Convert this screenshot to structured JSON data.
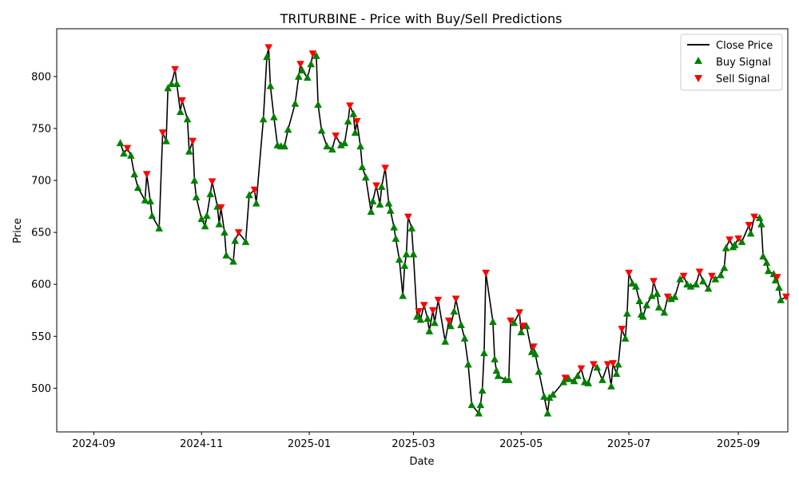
{
  "chart_data": {
    "type": "line",
    "title": "TRITURBINE - Price with Buy/Sell Predictions",
    "xlabel": "Date",
    "ylabel": "Price",
    "x_ticks": [
      "2024-09",
      "2024-11",
      "2025-01",
      "2025-03",
      "2025-05",
      "2025-07",
      "2025-09"
    ],
    "y_ticks": [
      500,
      550,
      600,
      650,
      700,
      750,
      800
    ],
    "xlim": [
      "2024-08-11",
      "2025-09-29"
    ],
    "ylim": [
      458,
      846
    ],
    "grid": false,
    "legend_position": "top-right",
    "colors": {
      "close": "#000000",
      "buy": "#008000",
      "sell": "#ff0000",
      "axes": "#000000"
    },
    "series": [
      {
        "name": "Close Price",
        "points": [
          [
            "2024-09-16",
            736
          ],
          [
            "2024-09-18",
            726
          ],
          [
            "2024-09-20",
            731
          ],
          [
            "2024-09-22",
            724
          ],
          [
            "2024-09-24",
            706
          ],
          [
            "2024-09-26",
            693
          ],
          [
            "2024-09-30",
            681
          ],
          [
            "2024-10-01",
            706
          ],
          [
            "2024-10-03",
            680
          ],
          [
            "2024-10-04",
            666
          ],
          [
            "2024-10-08",
            654
          ],
          [
            "2024-10-10",
            746
          ],
          [
            "2024-10-12",
            738
          ],
          [
            "2024-10-13",
            789
          ],
          [
            "2024-10-15",
            793
          ],
          [
            "2024-10-17",
            807
          ],
          [
            "2024-10-18",
            793
          ],
          [
            "2024-10-20",
            766
          ],
          [
            "2024-10-21",
            777
          ],
          [
            "2024-10-24",
            759
          ],
          [
            "2024-10-25",
            728
          ],
          [
            "2024-10-27",
            738
          ],
          [
            "2024-10-28",
            700
          ],
          [
            "2024-10-29",
            684
          ],
          [
            "2024-11-01",
            663
          ],
          [
            "2024-11-03",
            656
          ],
          [
            "2024-11-04",
            666
          ],
          [
            "2024-11-06",
            687
          ],
          [
            "2024-11-07",
            699
          ],
          [
            "2024-11-10",
            675
          ],
          [
            "2024-11-11",
            658
          ],
          [
            "2024-11-12",
            674
          ],
          [
            "2024-11-14",
            650
          ],
          [
            "2024-11-15",
            628
          ],
          [
            "2024-11-19",
            622
          ],
          [
            "2024-11-20",
            642
          ],
          [
            "2024-11-22",
            650
          ],
          [
            "2024-11-26",
            641
          ],
          [
            "2024-11-28",
            686
          ],
          [
            "2024-12-01",
            691
          ],
          [
            "2024-12-02",
            678
          ],
          [
            "2024-12-06",
            759
          ],
          [
            "2024-12-08",
            819
          ],
          [
            "2024-12-09",
            828
          ],
          [
            "2024-12-10",
            791
          ],
          [
            "2024-12-12",
            761
          ],
          [
            "2024-12-14",
            734
          ],
          [
            "2024-12-16",
            733
          ],
          [
            "2024-12-18",
            733
          ],
          [
            "2024-12-20",
            749
          ],
          [
            "2024-12-24",
            774
          ],
          [
            "2024-12-26",
            800
          ],
          [
            "2024-12-27",
            812
          ],
          [
            "2024-12-28",
            806
          ],
          [
            "2024-12-31",
            799
          ],
          [
            "2025-01-02",
            812
          ],
          [
            "2025-01-03",
            822
          ],
          [
            "2025-01-05",
            820
          ],
          [
            "2025-01-06",
            773
          ],
          [
            "2025-01-08",
            748
          ],
          [
            "2025-01-11",
            733
          ],
          [
            "2025-01-14",
            730
          ],
          [
            "2025-01-16",
            743
          ],
          [
            "2025-01-19",
            734
          ],
          [
            "2025-01-21",
            736
          ],
          [
            "2025-01-23",
            757
          ],
          [
            "2025-01-24",
            772
          ],
          [
            "2025-01-26",
            764
          ],
          [
            "2025-01-27",
            746
          ],
          [
            "2025-01-28",
            757
          ],
          [
            "2025-01-30",
            733
          ],
          [
            "2025-01-31",
            713
          ],
          [
            "2025-02-02",
            703
          ],
          [
            "2025-02-05",
            670
          ],
          [
            "2025-02-06",
            680
          ],
          [
            "2025-02-08",
            695
          ],
          [
            "2025-02-10",
            677
          ],
          [
            "2025-02-11",
            694
          ],
          [
            "2025-02-13",
            712
          ],
          [
            "2025-02-15",
            678
          ],
          [
            "2025-02-16",
            671
          ],
          [
            "2025-02-18",
            655
          ],
          [
            "2025-02-19",
            644
          ],
          [
            "2025-02-21",
            624
          ],
          [
            "2025-02-23",
            589
          ],
          [
            "2025-02-24",
            618
          ],
          [
            "2025-02-25",
            629
          ],
          [
            "2025-02-26",
            665
          ],
          [
            "2025-02-28",
            654
          ],
          [
            "2025-03-01",
            629
          ],
          [
            "2025-03-03",
            569
          ],
          [
            "2025-03-04",
            574
          ],
          [
            "2025-03-05",
            566
          ],
          [
            "2025-03-07",
            580
          ],
          [
            "2025-03-09",
            567
          ],
          [
            "2025-03-10",
            555
          ],
          [
            "2025-03-12",
            575
          ],
          [
            "2025-03-13",
            563
          ],
          [
            "2025-03-15",
            585
          ],
          [
            "2025-03-19",
            545
          ],
          [
            "2025-03-21",
            565
          ],
          [
            "2025-03-22",
            560
          ],
          [
            "2025-03-24",
            574
          ],
          [
            "2025-03-25",
            586
          ],
          [
            "2025-03-28",
            561
          ],
          [
            "2025-03-30",
            548
          ],
          [
            "2025-04-01",
            523
          ],
          [
            "2025-04-03",
            484
          ],
          [
            "2025-04-07",
            476
          ],
          [
            "2025-04-08",
            484
          ],
          [
            "2025-04-09",
            498
          ],
          [
            "2025-04-10",
            534
          ],
          [
            "2025-04-11",
            611
          ],
          [
            "2025-04-15",
            564
          ],
          [
            "2025-04-16",
            528
          ],
          [
            "2025-04-17",
            517
          ],
          [
            "2025-04-18",
            512
          ],
          [
            "2025-04-22",
            508
          ],
          [
            "2025-04-24",
            508
          ],
          [
            "2025-04-25",
            565
          ],
          [
            "2025-04-27",
            563
          ],
          [
            "2025-04-30",
            573
          ],
          [
            "2025-05-01",
            554
          ],
          [
            "2025-05-02",
            560
          ],
          [
            "2025-05-04",
            560
          ],
          [
            "2025-05-07",
            535
          ],
          [
            "2025-05-08",
            540
          ],
          [
            "2025-05-09",
            533
          ],
          [
            "2025-05-11",
            516
          ],
          [
            "2025-05-14",
            492
          ],
          [
            "2025-05-16",
            476
          ],
          [
            "2025-05-17",
            491
          ],
          [
            "2025-05-19",
            494
          ],
          [
            "2025-05-25",
            506
          ],
          [
            "2025-05-26",
            510
          ],
          [
            "2025-05-28",
            509
          ],
          [
            "2025-05-31",
            507
          ],
          [
            "2025-06-02",
            512
          ],
          [
            "2025-06-04",
            519
          ],
          [
            "2025-06-06",
            506
          ],
          [
            "2025-06-08",
            505
          ],
          [
            "2025-06-11",
            523
          ],
          [
            "2025-06-13",
            520
          ],
          [
            "2025-06-16",
            508
          ],
          [
            "2025-06-19",
            523
          ],
          [
            "2025-06-21",
            502
          ],
          [
            "2025-06-22",
            524
          ],
          [
            "2025-06-24",
            514
          ],
          [
            "2025-06-25",
            523
          ],
          [
            "2025-06-27",
            557
          ],
          [
            "2025-06-29",
            548
          ],
          [
            "2025-06-30",
            572
          ],
          [
            "2025-07-01",
            611
          ],
          [
            "2025-07-03",
            601
          ],
          [
            "2025-07-05",
            598
          ],
          [
            "2025-07-07",
            584
          ],
          [
            "2025-07-08",
            571
          ],
          [
            "2025-07-09",
            569
          ],
          [
            "2025-07-11",
            580
          ],
          [
            "2025-07-14",
            589
          ],
          [
            "2025-07-15",
            603
          ],
          [
            "2025-07-17",
            591
          ],
          [
            "2025-07-18",
            578
          ],
          [
            "2025-07-21",
            573
          ],
          [
            "2025-07-23",
            588
          ],
          [
            "2025-07-25",
            586
          ],
          [
            "2025-07-27",
            588
          ],
          [
            "2025-07-30",
            605
          ],
          [
            "2025-08-01",
            608
          ],
          [
            "2025-08-03",
            600
          ],
          [
            "2025-08-05",
            598
          ],
          [
            "2025-08-08",
            600
          ],
          [
            "2025-08-10",
            612
          ],
          [
            "2025-08-12",
            603
          ],
          [
            "2025-08-15",
            596
          ],
          [
            "2025-08-17",
            608
          ],
          [
            "2025-08-19",
            605
          ],
          [
            "2025-08-22",
            609
          ],
          [
            "2025-08-24",
            616
          ],
          [
            "2025-08-25",
            635
          ],
          [
            "2025-08-27",
            643
          ],
          [
            "2025-08-29",
            636
          ],
          [
            "2025-08-30",
            638
          ],
          [
            "2025-09-01",
            644
          ],
          [
            "2025-09-03",
            641
          ],
          [
            "2025-09-07",
            657
          ],
          [
            "2025-09-08",
            649
          ],
          [
            "2025-09-10",
            665
          ],
          [
            "2025-09-13",
            664
          ],
          [
            "2025-09-14",
            658
          ],
          [
            "2025-09-15",
            627
          ],
          [
            "2025-09-17",
            621
          ],
          [
            "2025-09-18",
            613
          ],
          [
            "2025-09-21",
            610
          ],
          [
            "2025-09-22",
            604
          ],
          [
            "2025-09-23",
            607
          ],
          [
            "2025-09-24",
            597
          ],
          [
            "2025-09-25",
            585
          ],
          [
            "2025-09-28",
            588
          ]
        ]
      }
    ],
    "buy_signals": [],
    "sell_signals": [],
    "legend": [
      "Close Price",
      "Buy Signal",
      "Sell Signal"
    ]
  }
}
